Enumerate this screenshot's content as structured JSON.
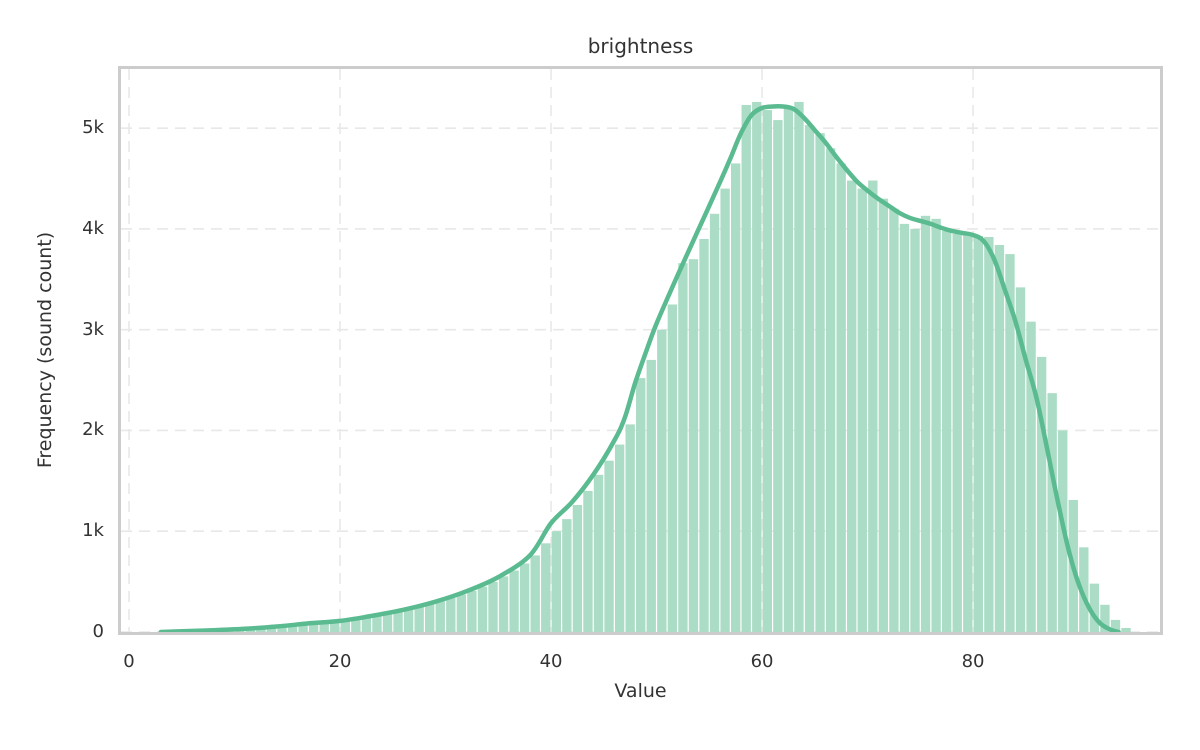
{
  "figure": {
    "title": "brightness",
    "xlabel": "Value",
    "ylabel": "Frequency (sound count)"
  },
  "chart_data": {
    "type": "bar",
    "subtype": "histogram-with-kde",
    "title": "brightness",
    "xlabel": "Value",
    "ylabel": "Frequency (sound count)",
    "xlim": [
      -0.76,
      97.72
    ],
    "ylim": [
      0,
      5587
    ],
    "grid": "both-dashed",
    "x_ticks": [
      {
        "v": 0,
        "label": "0"
      },
      {
        "v": 20,
        "label": "20"
      },
      {
        "v": 40,
        "label": "40"
      },
      {
        "v": 60,
        "label": "60"
      },
      {
        "v": 80,
        "label": "80"
      }
    ],
    "y_ticks": [
      {
        "v": 0,
        "label": "0"
      },
      {
        "v": 1000,
        "label": "1k"
      },
      {
        "v": 2000,
        "label": "2k"
      },
      {
        "v": 3000,
        "label": "3k"
      },
      {
        "v": 4000,
        "label": "4k"
      },
      {
        "v": 5000,
        "label": "5k"
      }
    ],
    "bins": {
      "start": 3,
      "width": 1,
      "counts": [
        6,
        8,
        10,
        12,
        14,
        17,
        22,
        27,
        33,
        40,
        48,
        56,
        66,
        76,
        85,
        93,
        102,
        112,
        128,
        146,
        165,
        185,
        205,
        228,
        252,
        278,
        305,
        338,
        372,
        408,
        450,
        498,
        552,
        610,
        680,
        760,
        880,
        1000,
        1120,
        1260,
        1400,
        1560,
        1700,
        1860,
        2060,
        2520,
        2700,
        3000,
        3250,
        3660,
        3700,
        3900,
        4150,
        4400,
        4650,
        5230,
        5260,
        5180,
        5080,
        5190,
        5260,
        5030,
        4950,
        4800,
        4650,
        4480,
        4400,
        4480,
        4300,
        4200,
        4050,
        4000,
        4130,
        4100,
        3980,
        3950,
        3960,
        3930,
        3920,
        3840,
        3750,
        3420,
        3080,
        2730,
        2370,
        2000,
        1310,
        840,
        480,
        270,
        120,
        40
      ]
    },
    "kde": {
      "points": [
        [
          3,
          0
        ],
        [
          5,
          8
        ],
        [
          8,
          18
        ],
        [
          11,
          32
        ],
        [
          14,
          55
        ],
        [
          17,
          85
        ],
        [
          20,
          110
        ],
        [
          23,
          160
        ],
        [
          26,
          220
        ],
        [
          29,
          300
        ],
        [
          32,
          405
        ],
        [
          35,
          545
        ],
        [
          38,
          760
        ],
        [
          40,
          1080
        ],
        [
          42,
          1290
        ],
        [
          44,
          1560
        ],
        [
          46,
          1900
        ],
        [
          47,
          2130
        ],
        [
          48,
          2480
        ],
        [
          49,
          2780
        ],
        [
          50,
          3060
        ],
        [
          52,
          3540
        ],
        [
          54,
          4000
        ],
        [
          56,
          4460
        ],
        [
          57,
          4700
        ],
        [
          58,
          4950
        ],
        [
          59,
          5130
        ],
        [
          60,
          5200
        ],
        [
          61,
          5215
        ],
        [
          62,
          5215
        ],
        [
          63,
          5190
        ],
        [
          64,
          5100
        ],
        [
          65,
          4980
        ],
        [
          66,
          4860
        ],
        [
          67,
          4720
        ],
        [
          68,
          4590
        ],
        [
          69,
          4470
        ],
        [
          70,
          4380
        ],
        [
          71,
          4300
        ],
        [
          72,
          4230
        ],
        [
          73,
          4160
        ],
        [
          74,
          4110
        ],
        [
          75,
          4080
        ],
        [
          76,
          4050
        ],
        [
          77,
          4010
        ],
        [
          78,
          3980
        ],
        [
          79,
          3960
        ],
        [
          80,
          3940
        ],
        [
          81,
          3880
        ],
        [
          82,
          3700
        ],
        [
          83,
          3400
        ],
        [
          84,
          3090
        ],
        [
          85,
          2700
        ],
        [
          86,
          2330
        ],
        [
          87,
          1830
        ],
        [
          88,
          1310
        ],
        [
          89,
          840
        ],
        [
          90,
          480
        ],
        [
          91,
          240
        ],
        [
          92,
          90
        ],
        [
          93,
          25
        ],
        [
          93.8,
          0
        ]
      ]
    },
    "colors": {
      "bar_fill": "#abdcc5",
      "kde_line": "#5aba90",
      "grid_line": "#e8e8e8",
      "plot_border": "#cccccc",
      "text": "#333333"
    }
  }
}
